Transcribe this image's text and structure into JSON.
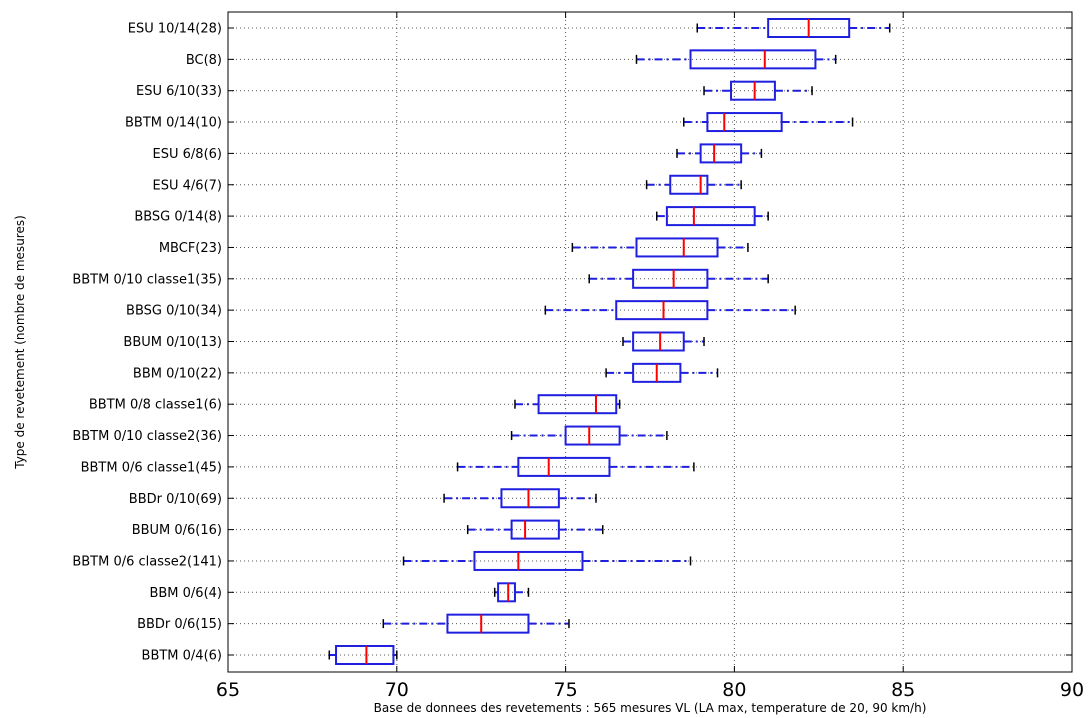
{
  "chart_data": {
    "type": "boxplot",
    "orientation": "horizontal",
    "xlabel": "Base de donnees des revetements : 565 mesures VL (LA max, temperature de 20, 90 km/h)",
    "ylabel": "Type de revetement (nombre de mesures)",
    "xlim": [
      65,
      90
    ],
    "xticks": [
      "65",
      "70",
      "75",
      "80",
      "85",
      "90"
    ],
    "grid": true,
    "colors": {
      "box": "#1f1fe0",
      "median": "#ff0000",
      "grid": "#555555"
    },
    "series": [
      {
        "name": "ESU 10/14(28)",
        "whisker_low": 78.9,
        "q1": 81.0,
        "median": 82.2,
        "q3": 83.4,
        "whisker_high": 84.6
      },
      {
        "name": "BC(8)",
        "whisker_low": 77.1,
        "q1": 78.7,
        "median": 80.9,
        "q3": 82.4,
        "whisker_high": 83.0
      },
      {
        "name": "ESU 6/10(33)",
        "whisker_low": 79.1,
        "q1": 79.9,
        "median": 80.6,
        "q3": 81.2,
        "whisker_high": 82.3
      },
      {
        "name": "BBTM 0/14(10)",
        "whisker_low": 78.5,
        "q1": 79.2,
        "median": 79.7,
        "q3": 81.4,
        "whisker_high": 83.5
      },
      {
        "name": "ESU 6/8(6)",
        "whisker_low": 78.3,
        "q1": 79.0,
        "median": 79.4,
        "q3": 80.2,
        "whisker_high": 80.8
      },
      {
        "name": "ESU 4/6(7)",
        "whisker_low": 77.4,
        "q1": 78.1,
        "median": 79.0,
        "q3": 79.2,
        "whisker_high": 80.2
      },
      {
        "name": "BBSG 0/14(8)",
        "whisker_low": 77.7,
        "q1": 78.0,
        "median": 78.8,
        "q3": 80.6,
        "whisker_high": 81.0
      },
      {
        "name": "MBCF(23)",
        "whisker_low": 75.2,
        "q1": 77.1,
        "median": 78.5,
        "q3": 79.5,
        "whisker_high": 80.4
      },
      {
        "name": "BBTM 0/10 classe1(35)",
        "whisker_low": 75.7,
        "q1": 77.0,
        "median": 78.2,
        "q3": 79.2,
        "whisker_high": 81.0
      },
      {
        "name": "BBSG 0/10(34)",
        "whisker_low": 74.4,
        "q1": 76.5,
        "median": 77.9,
        "q3": 79.2,
        "whisker_high": 81.8
      },
      {
        "name": "BBUM 0/10(13)",
        "whisker_low": 76.7,
        "q1": 77.0,
        "median": 77.8,
        "q3": 78.5,
        "whisker_high": 79.1
      },
      {
        "name": "BBM 0/10(22)",
        "whisker_low": 76.2,
        "q1": 77.0,
        "median": 77.7,
        "q3": 78.4,
        "whisker_high": 79.5
      },
      {
        "name": "BBTM 0/8 classe1(6)",
        "whisker_low": 73.5,
        "q1": 74.2,
        "median": 75.9,
        "q3": 76.5,
        "whisker_high": 76.6
      },
      {
        "name": "BBTM 0/10 classe2(36)",
        "whisker_low": 73.4,
        "q1": 75.0,
        "median": 75.7,
        "q3": 76.6,
        "whisker_high": 78.0
      },
      {
        "name": "BBTM 0/6 classe1(45)",
        "whisker_low": 71.8,
        "q1": 73.6,
        "median": 74.5,
        "q3": 76.3,
        "whisker_high": 78.8
      },
      {
        "name": "BBDr 0/10(69)",
        "whisker_low": 71.4,
        "q1": 73.1,
        "median": 73.9,
        "q3": 74.8,
        "whisker_high": 75.9
      },
      {
        "name": "BBUM 0/6(16)",
        "whisker_low": 72.1,
        "q1": 73.4,
        "median": 73.8,
        "q3": 74.8,
        "whisker_high": 76.1
      },
      {
        "name": "BBTM 0/6 classe2(141)",
        "whisker_low": 70.2,
        "q1": 72.3,
        "median": 73.6,
        "q3": 75.5,
        "whisker_high": 78.7
      },
      {
        "name": "BBM 0/6(4)",
        "whisker_low": 72.9,
        "q1": 73.0,
        "median": 73.3,
        "q3": 73.5,
        "whisker_high": 73.9
      },
      {
        "name": "BBDr 0/6(15)",
        "whisker_low": 69.6,
        "q1": 71.5,
        "median": 72.5,
        "q3": 73.9,
        "whisker_high": 75.1
      },
      {
        "name": "BBTM 0/4(6)",
        "whisker_low": 68.0,
        "q1": 68.2,
        "median": 69.1,
        "q3": 69.9,
        "whisker_high": 70.0
      }
    ]
  }
}
